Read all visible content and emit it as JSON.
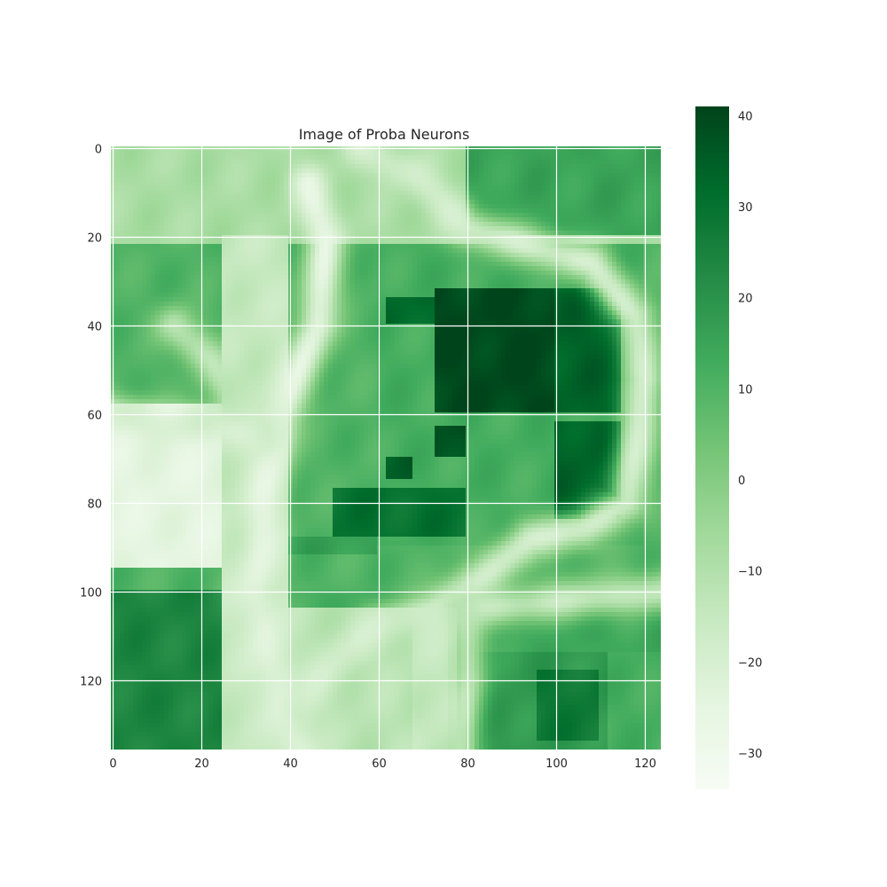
{
  "chart_data": {
    "type": "heatmap",
    "title": "Image of Proba Neurons",
    "xlabel": "",
    "ylabel": "",
    "x_ticks": [
      0,
      20,
      40,
      60,
      80,
      100,
      120
    ],
    "y_ticks": [
      0,
      20,
      40,
      60,
      80,
      100,
      120
    ],
    "xlim": [
      -0.5,
      123.5
    ],
    "ylim": [
      135.5,
      -0.5
    ],
    "grid": true,
    "colormap": "Greens",
    "colorbar": {
      "range": [
        -34,
        41
      ],
      "ticks": [
        40,
        30,
        20,
        10,
        0,
        -10,
        -20,
        -30
      ],
      "tick_labels": [
        "40",
        "30",
        "20",
        "10",
        "0",
        "−10",
        "−20",
        "−30"
      ],
      "low_color": "#f7fcf5",
      "high_color": "#00441b"
    },
    "regions": [
      {
        "x": [
          0,
          124
        ],
        "y": [
          0,
          136
        ],
        "value": 12
      },
      {
        "x": [
          0,
          124
        ],
        "y": [
          0,
          22
        ],
        "value": -8
      },
      {
        "x": [
          80,
          124
        ],
        "y": [
          0,
          20
        ],
        "value": 15
      },
      {
        "x": [
          0,
          124
        ],
        "y": [
          22,
          100
        ],
        "value": 10
      },
      {
        "x": [
          0,
          35
        ],
        "y": [
          58,
          95
        ],
        "value": -25
      },
      {
        "x": [
          25,
          40
        ],
        "y": [
          20,
          136
        ],
        "value": -15
      },
      {
        "x": [
          40,
          78
        ],
        "y": [
          104,
          136
        ],
        "value": -12
      },
      {
        "x": [
          0,
          25
        ],
        "y": [
          100,
          136
        ],
        "value": 24
      },
      {
        "x": [
          68,
          76
        ],
        "y": [
          104,
          136
        ],
        "value": -15
      },
      {
        "x": [
          60,
          120
        ],
        "y": [
          22,
          90
        ],
        "value": 12
      },
      {
        "x": [
          73,
          100
        ],
        "y": [
          32,
          60
        ],
        "value": 40
      },
      {
        "x": [
          100,
          115
        ],
        "y": [
          32,
          60
        ],
        "value": 34
      },
      {
        "x": [
          100,
          115
        ],
        "y": [
          62,
          84
        ],
        "value": 34
      },
      {
        "x": [
          62,
          73
        ],
        "y": [
          34,
          40
        ],
        "value": 32
      },
      {
        "x": [
          50,
          80
        ],
        "y": [
          77,
          88
        ],
        "value": 30
      },
      {
        "x": [
          62,
          68
        ],
        "y": [
          70,
          75
        ],
        "value": 35
      },
      {
        "x": [
          73,
          80
        ],
        "y": [
          63,
          70
        ],
        "value": 38
      },
      {
        "x": [
          40,
          60
        ],
        "y": [
          88,
          92
        ],
        "value": 16
      },
      {
        "x": [
          82,
          112
        ],
        "y": [
          114,
          136
        ],
        "value": 18
      },
      {
        "x": [
          96,
          110
        ],
        "y": [
          118,
          134
        ],
        "value": 28
      },
      {
        "x": [
          80,
          124
        ],
        "y": [
          100,
          114
        ],
        "value": 14
      }
    ],
    "ridges": [
      {
        "points": [
          [
            44,
            8
          ],
          [
            48,
            20
          ],
          [
            46,
            40
          ],
          [
            38,
            60
          ],
          [
            34,
            80
          ],
          [
            32,
            100
          ],
          [
            36,
            116
          ],
          [
            42,
            136
          ]
        ],
        "value": -24
      },
      {
        "points": [
          [
            0,
            60
          ],
          [
            12,
            62
          ],
          [
            24,
            62
          ],
          [
            34,
            66
          ]
        ],
        "value": -20
      },
      {
        "points": [
          [
            56,
            0
          ],
          [
            68,
            6
          ],
          [
            80,
            18
          ],
          [
            94,
            22
          ],
          [
            108,
            26
          ],
          [
            118,
            38
          ],
          [
            120,
            52
          ],
          [
            118,
            66
          ],
          [
            116,
            80
          ],
          [
            106,
            86
          ],
          [
            94,
            88
          ],
          [
            84,
            96
          ],
          [
            72,
            104
          ],
          [
            60,
            108
          ],
          [
            52,
            114
          ],
          [
            42,
            126
          ]
        ],
        "value": -18
      },
      {
        "points": [
          [
            14,
            40
          ],
          [
            22,
            48
          ],
          [
            28,
            58
          ]
        ],
        "value": -12
      },
      {
        "points": [
          [
            80,
            104
          ],
          [
            100,
            102
          ],
          [
            124,
            100
          ]
        ],
        "value": -14
      },
      {
        "points": [
          [
            80,
            106
          ],
          [
            80,
            120
          ],
          [
            78,
            136
          ]
        ],
        "value": -12
      }
    ]
  }
}
